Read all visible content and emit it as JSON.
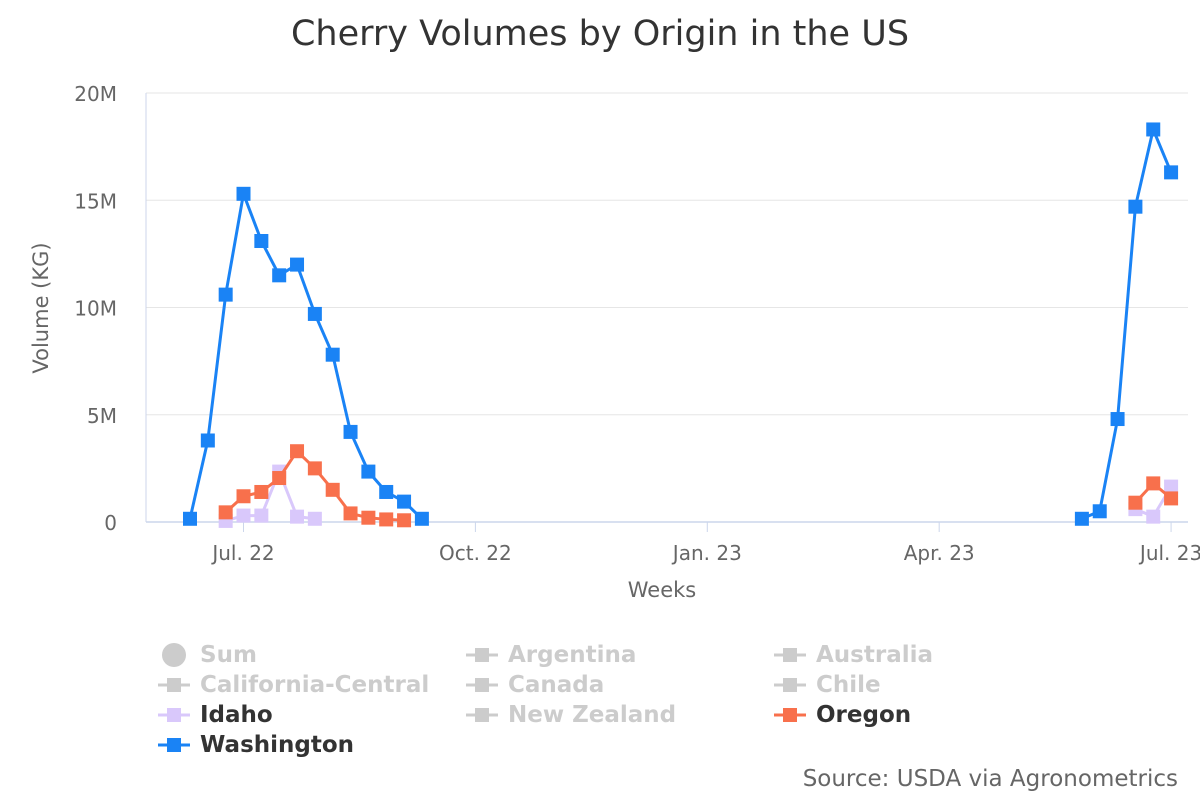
{
  "chart_data": {
    "type": "line",
    "title": "Cherry Volumes by Origin in the US",
    "xlabel": "Weeks",
    "ylabel": "Volume (KG)",
    "ylim": [
      0,
      20000000
    ],
    "yticks": [
      {
        "value": 0,
        "label": "0"
      },
      {
        "value": 5000000,
        "label": "5M"
      },
      {
        "value": 10000000,
        "label": "10M"
      },
      {
        "value": 15000000,
        "label": "15M"
      },
      {
        "value": 20000000,
        "label": "20M"
      }
    ],
    "x_unit": "week_index",
    "xlim": [
      -3,
      52.5
    ],
    "xticks": [
      {
        "value": 0,
        "label": "Jul. 22"
      },
      {
        "value": 13,
        "label": "Oct. 22"
      },
      {
        "value": 26,
        "label": "Jan. 23"
      },
      {
        "value": 39,
        "label": "Apr. 23"
      },
      {
        "value": 52,
        "label": "Jul. 23"
      }
    ],
    "series": [
      {
        "name": "Washington",
        "color": "#1a83f5",
        "visible": true,
        "points": [
          [
            [
              -3,
              150000
            ],
            [
              -2,
              3800000
            ],
            [
              -1,
              10600000
            ],
            [
              0,
              15300000
            ],
            [
              1,
              13100000
            ],
            [
              2,
              11500000
            ],
            [
              3,
              12000000
            ],
            [
              4,
              9700000
            ],
            [
              5,
              7800000
            ],
            [
              6,
              4200000
            ],
            [
              7,
              2350000
            ],
            [
              8,
              1400000
            ],
            [
              9,
              950000
            ],
            [
              10,
              150000
            ]
          ],
          [
            [
              47,
              150000
            ],
            [
              48,
              500000
            ],
            [
              49,
              4800000
            ],
            [
              50,
              14700000
            ],
            [
              51,
              18300000
            ],
            [
              52,
              16300000
            ]
          ]
        ]
      },
      {
        "name": "Oregon",
        "color": "#f8704c",
        "visible": true,
        "points": [
          [
            [
              -1,
              450000
            ],
            [
              0,
              1200000
            ],
            [
              1,
              1400000
            ],
            [
              2,
              2050000
            ],
            [
              3,
              3300000
            ],
            [
              4,
              2500000
            ],
            [
              5,
              1500000
            ],
            [
              6,
              400000
            ],
            [
              7,
              200000
            ],
            [
              8,
              120000
            ],
            [
              9,
              80000
            ]
          ],
          [
            [
              50,
              900000
            ],
            [
              51,
              1800000
            ],
            [
              52,
              1100000
            ]
          ]
        ]
      },
      {
        "name": "Idaho",
        "color": "#d9c8fb",
        "visible": true,
        "points": [
          [
            [
              -1,
              50000
            ],
            [
              0,
              300000
            ],
            [
              1,
              300000
            ],
            [
              2,
              2350000
            ],
            [
              3,
              250000
            ],
            [
              4,
              150000
            ]
          ],
          [
            [
              50,
              600000
            ],
            [
              51,
              250000
            ],
            [
              52,
              1650000
            ]
          ]
        ]
      }
    ],
    "legend": {
      "items": [
        {
          "label": "Sum",
          "visible": false,
          "symbol": "circle",
          "color": "#cccccc"
        },
        {
          "label": "Argentina",
          "visible": false,
          "symbol": "square",
          "color": "#cccccc"
        },
        {
          "label": "Australia",
          "visible": false,
          "symbol": "square",
          "color": "#cccccc"
        },
        {
          "label": "California-Central",
          "visible": false,
          "symbol": "square",
          "color": "#cccccc"
        },
        {
          "label": "Canada",
          "visible": false,
          "symbol": "square",
          "color": "#cccccc"
        },
        {
          "label": "Chile",
          "visible": false,
          "symbol": "square",
          "color": "#cccccc"
        },
        {
          "label": "Idaho",
          "visible": true,
          "symbol": "square",
          "color": "#d9c8fb"
        },
        {
          "label": "New Zealand",
          "visible": false,
          "symbol": "square",
          "color": "#cccccc"
        },
        {
          "label": "Oregon",
          "visible": true,
          "symbol": "square",
          "color": "#f8704c"
        },
        {
          "label": "Washington",
          "visible": true,
          "symbol": "square",
          "color": "#1a83f5"
        }
      ]
    }
  },
  "source": "Source: USDA via Agronometrics"
}
